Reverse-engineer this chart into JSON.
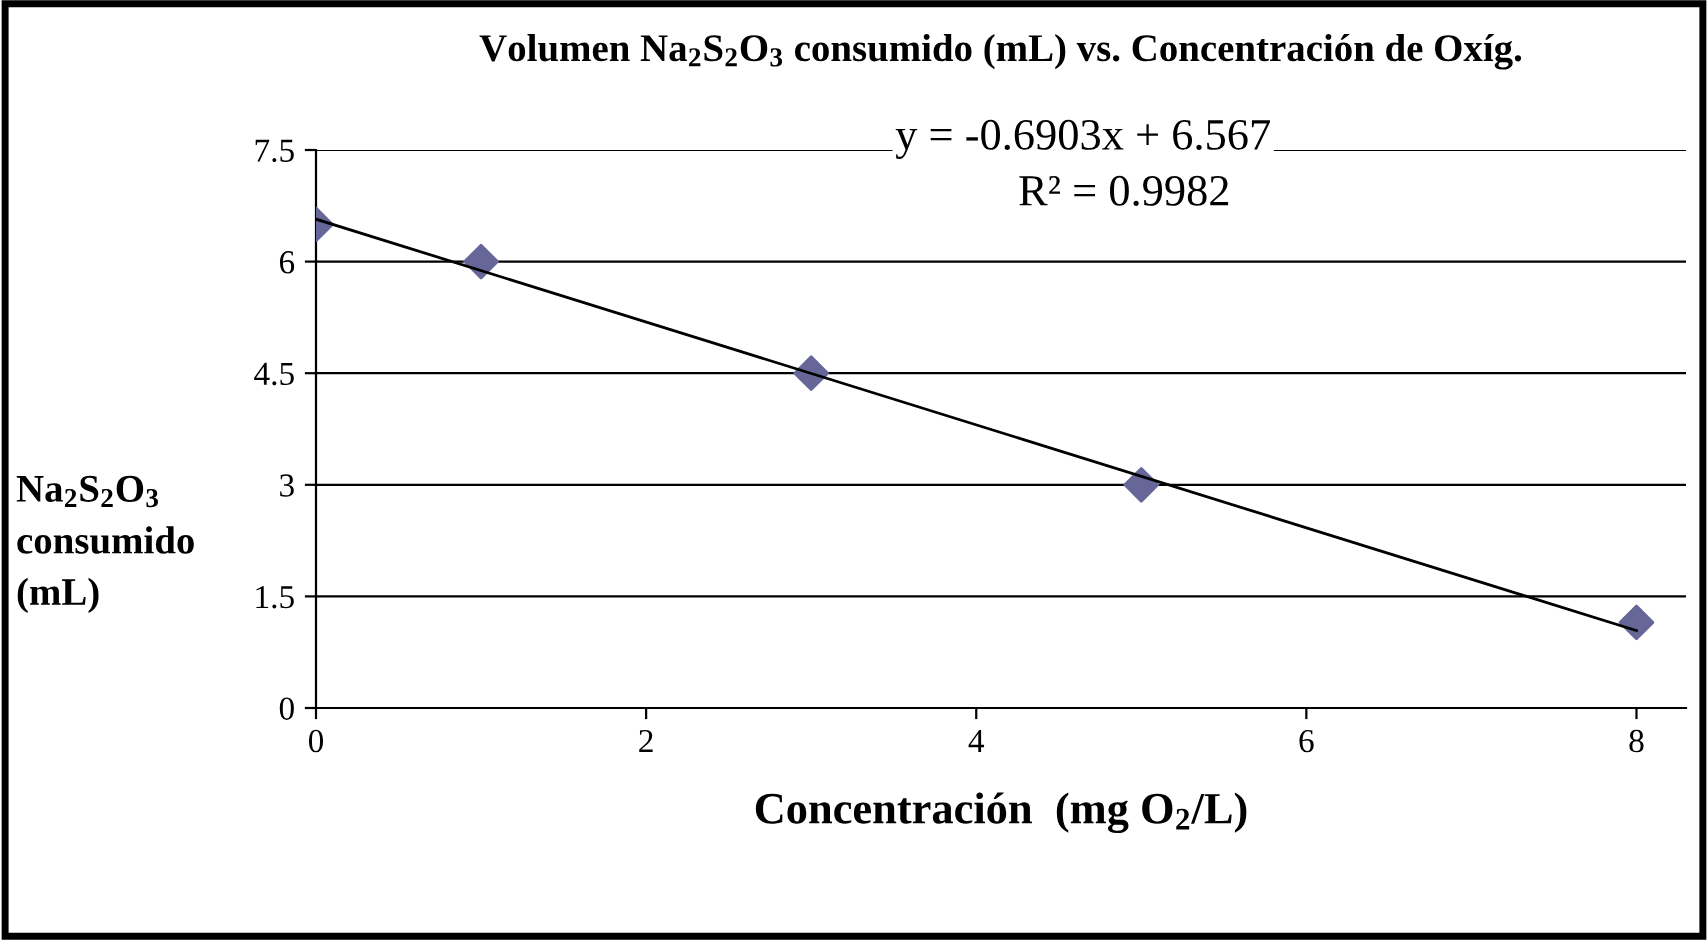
{
  "chart_data": {
    "type": "scatter",
    "title": "Volumen Na$_{2}$S$_{2}$O$_{3}$ consumido (mL) vs. Concentración de Oxíg.",
    "xlabel": "Concentración  (mg O$_{2}$/L)",
    "ylabel": "Na$_{2}$S$_{2}$O$_{3}$\nconsumido\n(mL)",
    "x": [
      0,
      1,
      3,
      5,
      8
    ],
    "series": [
      {
        "color": "#666699",
        "marker": "diamond",
        "values": [
          6.5,
          6.0,
          4.5,
          3.0,
          1.15
        ]
      },
      {
        "type": "line",
        "color": "#000000",
        "marker": "none",
        "x": [
          0,
          8
        ],
        "values": [
          6.57,
          1.04
        ]
      }
    ],
    "annotations": [
      "y = -0.6903x + 6.567",
      "R² = 0.9982"
    ],
    "xlim": [
      0,
      8.3
    ],
    "xticks": [
      0,
      2,
      4,
      6,
      8
    ],
    "ylim": [
      0,
      7.5
    ],
    "yticks": [
      0,
      1.5,
      3,
      4.5,
      6,
      7.5
    ],
    "grid": "y",
    "legend": false
  }
}
